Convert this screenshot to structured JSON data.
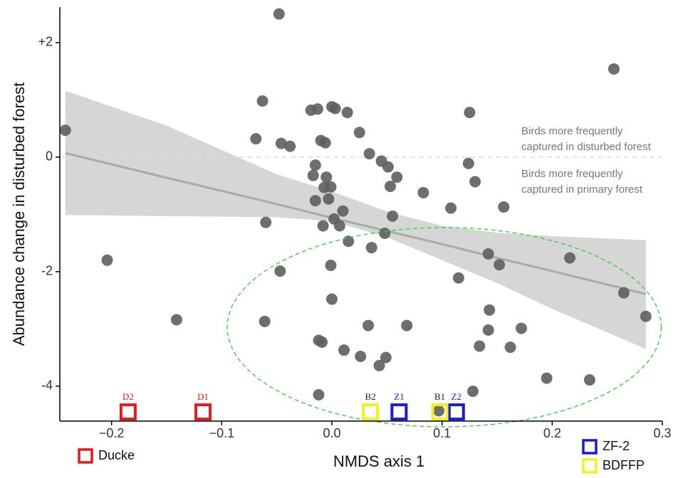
{
  "chart_data": {
    "type": "scatter",
    "xlabel": "NMDS axis 1",
    "ylabel": "Abundance change in disturbed forest",
    "xlim": [
      -0.247,
      0.3
    ],
    "ylim": [
      -4.61,
      2.62
    ],
    "xticks": [
      {
        "value": -0.2,
        "label": "−0.2"
      },
      {
        "value": -0.1,
        "label": "−0.1"
      },
      {
        "value": 0,
        "label": "0.0"
      },
      0.1,
      0.2,
      0.3
    ],
    "yticks": [
      {
        "value": 2,
        "label": "+2"
      },
      0,
      -2,
      -4
    ],
    "series": [
      {
        "color": "#5e5e5e",
        "x": [
          -0.048,
          -0.242,
          0.256,
          -0.063,
          -0.019,
          -0.013,
          0.0,
          0.003,
          0.014,
          -0.069,
          -0.046,
          -0.038,
          -0.01,
          -0.006,
          0.025,
          0.125,
          0.034,
          0.045,
          0.051,
          -0.015,
          -0.017,
          -0.005,
          -0.007,
          -0.001,
          0.053,
          0.059,
          0.124,
          0.13,
          -0.015,
          -0.003,
          0.083,
          -0.204,
          -0.06,
          -0.008,
          0.002,
          0.01,
          0.007,
          0.015,
          0.055,
          0.048,
          0.036,
          0.108,
          0.156,
          -0.047,
          -0.001,
          0.142,
          0.115,
          0.152,
          0.216,
          0.0,
          0.265,
          0.285,
          -0.141,
          -0.061,
          0.033,
          -0.012,
          -0.009,
          0.011,
          0.026,
          0.049,
          0.043,
          0.068,
          0.143,
          0.142,
          0.134,
          0.162,
          0.172,
          0.195,
          0.234,
          -0.012,
          0.128,
          0.097
        ],
        "values": [
          2.5,
          0.47,
          1.54,
          0.98,
          0.82,
          0.84,
          0.88,
          0.85,
          0.78,
          0.32,
          0.24,
          0.19,
          0.29,
          0.25,
          0.43,
          0.78,
          0.06,
          -0.07,
          -0.17,
          -0.14,
          -0.32,
          -0.35,
          -0.53,
          -0.52,
          -0.51,
          -0.35,
          -0.11,
          -0.43,
          -0.76,
          -0.73,
          -0.62,
          -1.8,
          -1.14,
          -1.2,
          -1.08,
          -0.94,
          -1.2,
          -1.47,
          -1.03,
          -1.33,
          -1.58,
          -0.89,
          -0.87,
          -1.99,
          -1.89,
          -1.69,
          -2.11,
          -1.88,
          -1.76,
          -2.48,
          -2.37,
          -2.78,
          -2.84,
          -2.87,
          -2.94,
          -3.2,
          -3.23,
          -3.37,
          -3.48,
          -3.5,
          -3.64,
          -2.94,
          -2.67,
          -3.02,
          -3.3,
          -3.32,
          -2.99,
          -3.86,
          -3.89,
          -4.15,
          -4.09,
          -4.43
        ]
      }
    ],
    "fit": {
      "color": "#aaaaaa",
      "band_color": "#d6d6d6",
      "x": [
        -0.242,
        -0.15,
        -0.05,
        0.0,
        0.05,
        0.1,
        0.15,
        0.2,
        0.285
      ],
      "values": [
        0.07,
        -0.36,
        -0.82,
        -1.06,
        -1.29,
        -1.52,
        -1.76,
        -1.99,
        -2.39
      ],
      "upper": [
        1.16,
        0.55,
        -0.3,
        -0.6,
        -0.95,
        -1.2,
        -1.32,
        -1.38,
        -1.45
      ],
      "lower": [
        -1.01,
        -1.03,
        -1.05,
        -1.12,
        -1.4,
        -1.8,
        -2.2,
        -2.65,
        -3.35
      ]
    },
    "reference_line": {
      "value": 0,
      "color": "#dddddd"
    },
    "annotations": [
      [
        "Birds more frequently",
        "captured in disturbed forest"
      ],
      [
        "Birds more frequently",
        "captured in primary forest"
      ]
    ],
    "ellipse": {
      "center": [
        0.102,
        -2.97
      ],
      "radius": [
        0.197,
        1.74
      ],
      "color": "#33cc33"
    },
    "site_groups": [
      {
        "name": "Ducke",
        "color": "#e8191c",
        "label_color": "#e8191c",
        "sites": [
          {
            "label": "D2",
            "x": -0.185,
            "y": -4.45
          },
          {
            "label": "D1",
            "x": -0.117,
            "y": -4.45
          }
        ]
      },
      {
        "name": "ZF-2",
        "color": "#1a1adb",
        "label_color": "#1a1adb",
        "sites": [
          {
            "label": "Z1",
            "x": 0.061,
            "y": -4.45
          },
          {
            "label": "Z2",
            "x": 0.113,
            "y": -4.45
          }
        ]
      },
      {
        "name": "BDFFP",
        "color": "#f2f21a",
        "label_color": "#222222",
        "sites": [
          {
            "label": "B2",
            "x": 0.035,
            "y": -4.45
          },
          {
            "label": "B1",
            "x": 0.098,
            "y": -4.45
          }
        ]
      }
    ]
  }
}
